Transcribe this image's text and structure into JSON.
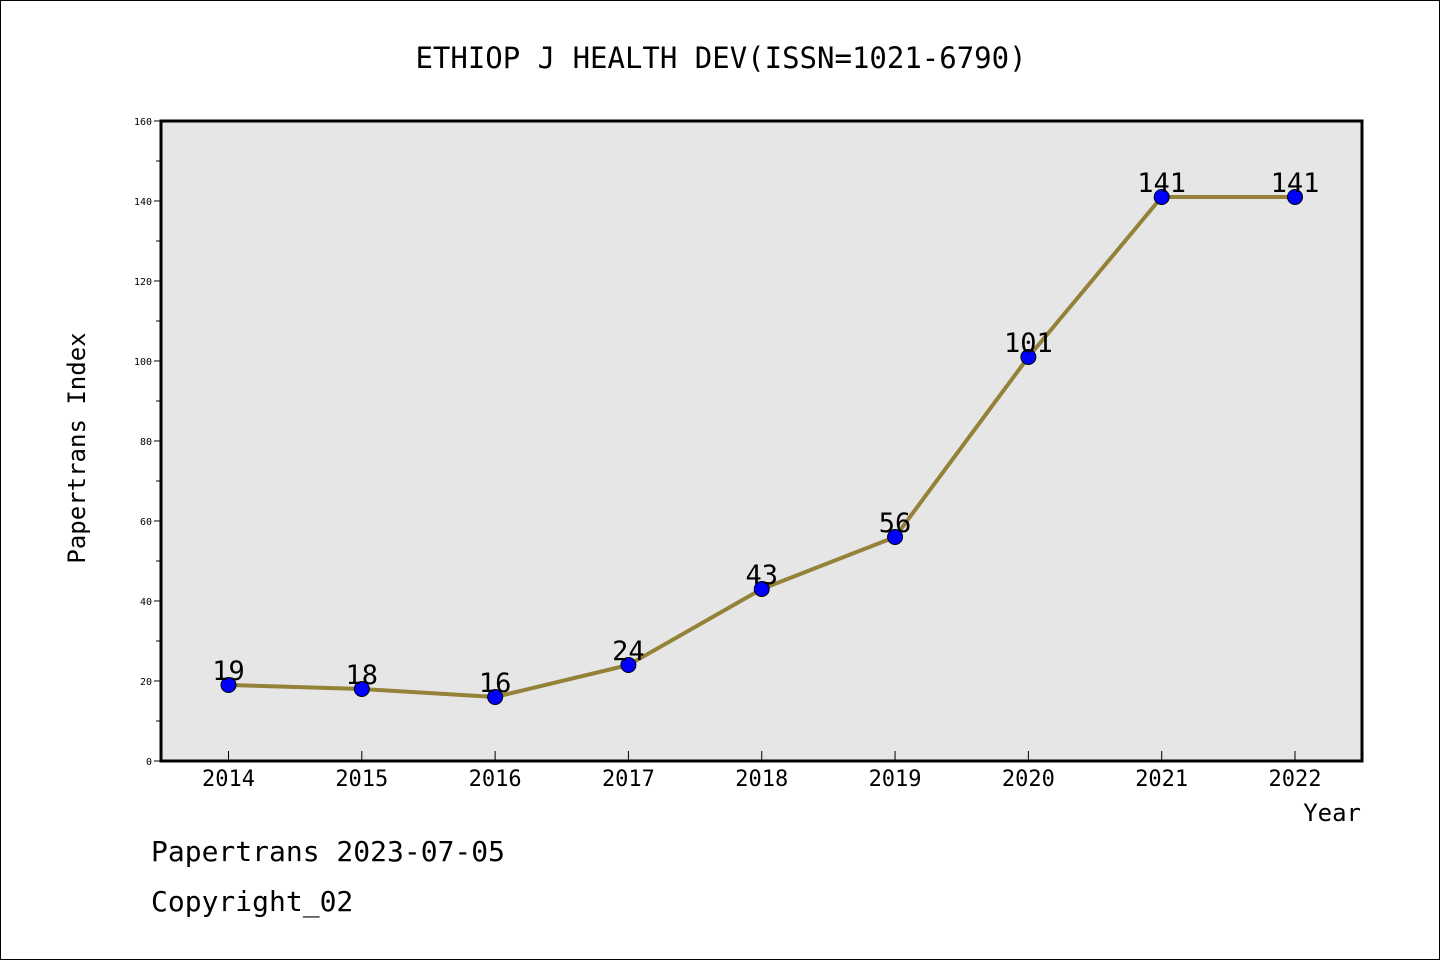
{
  "chart_data": {
    "type": "line",
    "title": "ETHIOP J HEALTH DEV(ISSN=1021-6790)",
    "xlabel": "Year",
    "ylabel": "Papertrans Index",
    "categories": [
      "2014",
      "2015",
      "2016",
      "2017",
      "2018",
      "2019",
      "2020",
      "2021",
      "2022"
    ],
    "values": [
      19,
      18,
      16,
      24,
      43,
      56,
      101,
      141,
      141
    ],
    "ylim": [
      0,
      160
    ],
    "y_ticks": [
      "0",
      "20",
      "40",
      "60",
      "80",
      "100",
      "120",
      "140",
      "160"
    ],
    "grid": false,
    "legend": "none",
    "colors": {
      "line": "#948238",
      "marker": "#0000ff",
      "plot_background": "#e6e6e6"
    }
  },
  "footer": {
    "date_line": "Papertrans 2023-07-05",
    "copyright_line": "Copyright_02"
  }
}
